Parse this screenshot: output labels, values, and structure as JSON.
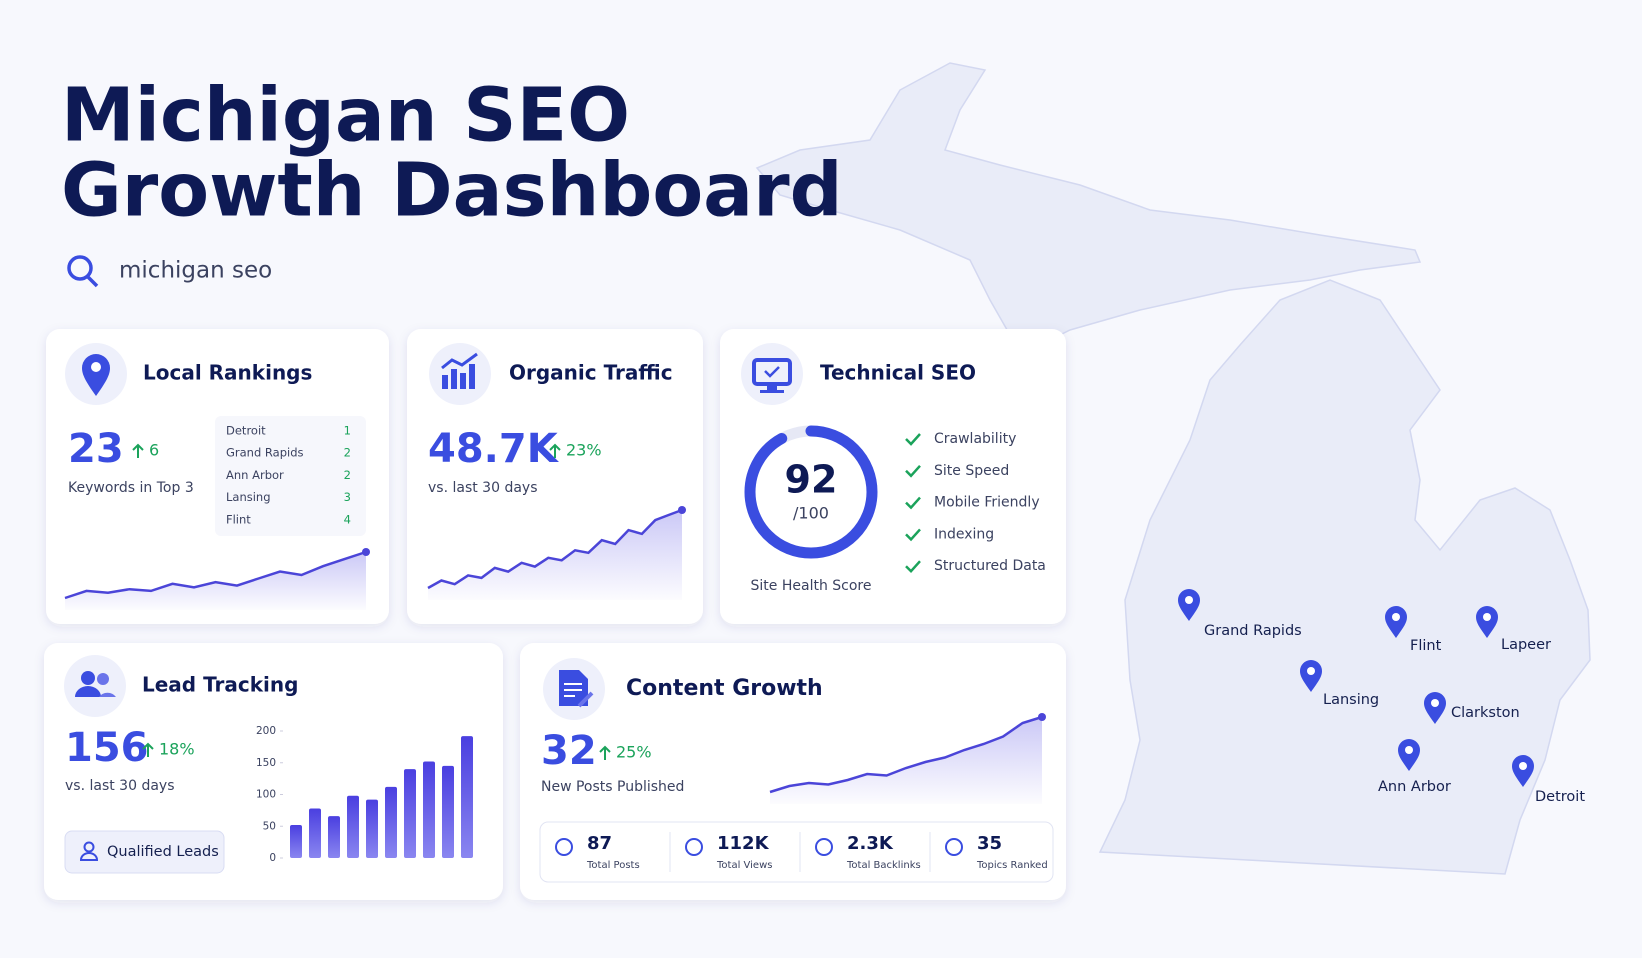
{
  "header": {
    "title": [
      "Michigan SEO",
      "Growth Dashboard"
    ],
    "search": "michigan seo"
  },
  "local_rankings": {
    "title": "Local Rankings",
    "value": 23,
    "change": "6",
    "label": "Keywords in Top 3",
    "ranks": [
      [
        "Detroit",
        1
      ],
      [
        "Grand Rapids",
        2
      ],
      [
        "Ann Arbor",
        2
      ],
      [
        "Lansing",
        3
      ],
      [
        "Flint",
        4
      ]
    ],
    "trend": [
      10,
      14,
      13,
      15,
      14,
      18,
      16,
      19,
      17,
      21,
      25,
      23,
      28,
      32,
      36
    ]
  },
  "organic_traffic": {
    "title": "Organic Traffic",
    "value": "48.7K",
    "change": "23%",
    "label": "vs. last 30 days",
    "trend": [
      12,
      18,
      15,
      22,
      20,
      28,
      25,
      32,
      29,
      36,
      34,
      42,
      40,
      50,
      47,
      58,
      55,
      66,
      70,
      74
    ]
  },
  "technical_seo": {
    "title": "Technical SEO",
    "score": 92,
    "scale": "/100",
    "checks": [
      "Crawlability",
      "Site Speed",
      "Mobile Friendly",
      "Indexing",
      "Structured Data"
    ],
    "caption": "Site Health Score"
  },
  "lead_tracking": {
    "title": "Lead Tracking",
    "value": 156,
    "change": "18%",
    "label": "vs. last 30 days",
    "button": "Qualified Leads",
    "chart": {
      "type": "bar",
      "ylim": [
        0,
        200
      ],
      "yticks": [
        0,
        50,
        100,
        150,
        200
      ],
      "values": [
        52,
        78,
        66,
        98,
        92,
        112,
        140,
        152,
        145,
        192
      ]
    }
  },
  "content_growth": {
    "title": "Content Growth",
    "value": 32,
    "change": "25%",
    "label": "New Posts Published",
    "trend": [
      10,
      14,
      16,
      15,
      18,
      22,
      21,
      26,
      30,
      33,
      38,
      42,
      47,
      56,
      60
    ],
    "stats": [
      {
        "value": 87,
        "label": "Total Posts"
      },
      {
        "value": "112K",
        "label": "Total Views"
      },
      {
        "value": "2.3K",
        "label": "Total Backlinks"
      },
      {
        "value": 35,
        "label": "Topics Ranked"
      }
    ]
  },
  "map": {
    "cities": [
      "Grand Rapids",
      "Flint",
      "Lapeer",
      "Lansing",
      "Clarkston",
      "Ann Arbor",
      "Detroit"
    ]
  }
}
